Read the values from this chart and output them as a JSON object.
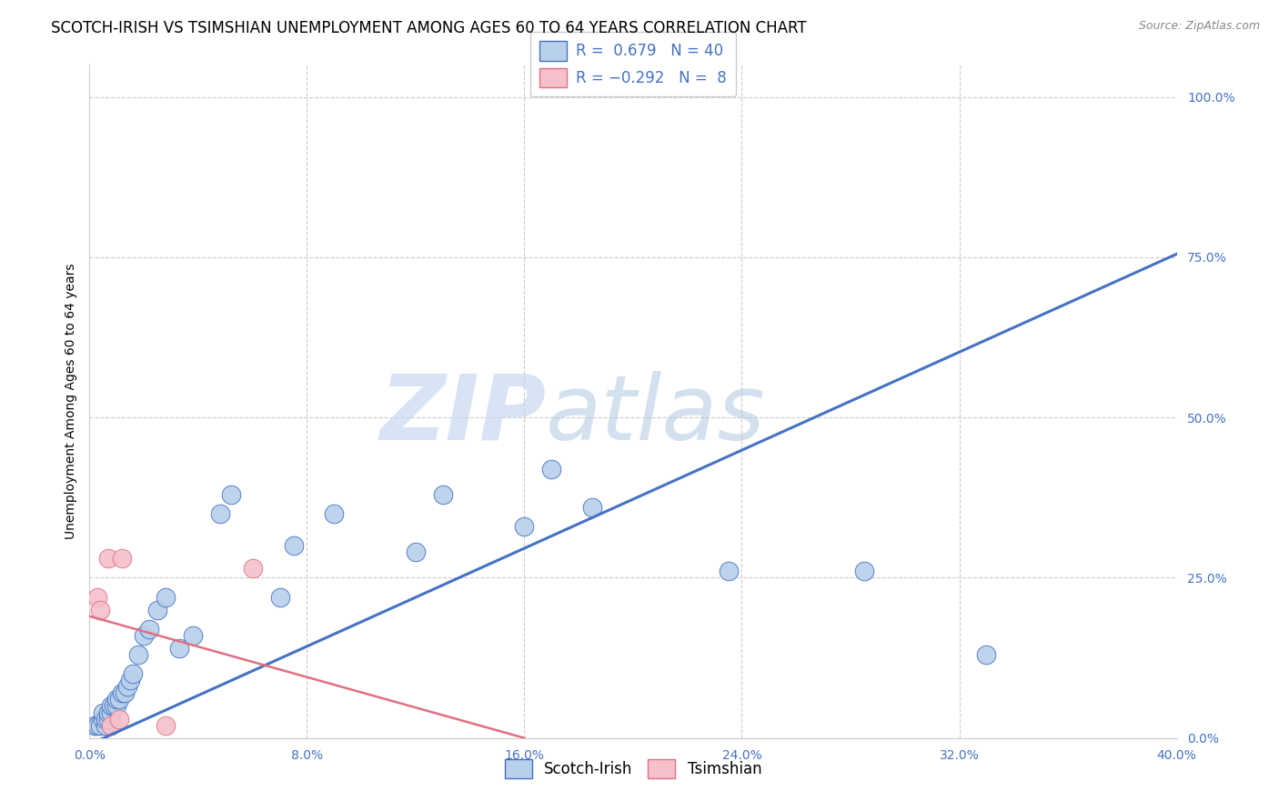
{
  "title": "SCOTCH-IRISH VS TSIMSHIAN UNEMPLOYMENT AMONG AGES 60 TO 64 YEARS CORRELATION CHART",
  "source": "Source: ZipAtlas.com",
  "ylabel": "Unemployment Among Ages 60 to 64 years",
  "xlim": [
    0.0,
    0.4
  ],
  "ylim": [
    0.0,
    1.05
  ],
  "xticks": [
    0.0,
    0.08,
    0.16,
    0.24,
    0.32,
    0.4
  ],
  "xtick_labels": [
    "0.0%",
    "8.0%",
    "16.0%",
    "24.0%",
    "32.0%",
    "40.0%"
  ],
  "yticks": [
    0.0,
    0.25,
    0.5,
    0.75,
    1.0
  ],
  "ytick_labels": [
    "0.0%",
    "25.0%",
    "50.0%",
    "75.0%",
    "100.0%"
  ],
  "scotch_irish_R": 0.679,
  "scotch_irish_N": 40,
  "tsimshian_R": -0.292,
  "tsimshian_N": 8,
  "scotch_irish_color": "#b8d0ea",
  "tsimshian_color": "#f5c0cb",
  "trend_blue": "#4472c4",
  "trend_pink": "#e07080",
  "scotch_irish_x": [
    0.002,
    0.003,
    0.004,
    0.005,
    0.005,
    0.006,
    0.006,
    0.007,
    0.007,
    0.008,
    0.008,
    0.009,
    0.01,
    0.01,
    0.011,
    0.012,
    0.013,
    0.014,
    0.015,
    0.016,
    0.018,
    0.02,
    0.022,
    0.025,
    0.028,
    0.033,
    0.038,
    0.048,
    0.052,
    0.07,
    0.075,
    0.09,
    0.12,
    0.13,
    0.16,
    0.17,
    0.185,
    0.235,
    0.285,
    0.33
  ],
  "scotch_irish_y": [
    0.02,
    0.02,
    0.02,
    0.03,
    0.04,
    0.02,
    0.03,
    0.03,
    0.04,
    0.04,
    0.05,
    0.05,
    0.05,
    0.06,
    0.06,
    0.07,
    0.07,
    0.08,
    0.09,
    0.1,
    0.13,
    0.16,
    0.17,
    0.2,
    0.22,
    0.14,
    0.16,
    0.35,
    0.38,
    0.22,
    0.3,
    0.35,
    0.29,
    0.38,
    0.33,
    0.42,
    0.36,
    0.26,
    0.26,
    0.13
  ],
  "blue_trend_x0": 0.0,
  "blue_trend_y0": -0.01,
  "blue_trend_x1": 0.4,
  "blue_trend_y1": 0.755,
  "pink_trend_x0": 0.0,
  "pink_trend_y0": 0.19,
  "pink_trend_x1": 0.16,
  "pink_trend_y1": 0.0,
  "tsimshian_x": [
    0.003,
    0.004,
    0.007,
    0.008,
    0.011,
    0.012,
    0.028,
    0.06
  ],
  "tsimshian_y": [
    0.22,
    0.2,
    0.28,
    0.02,
    0.03,
    0.28,
    0.02,
    0.265
  ],
  "watermark_zip": "ZIP",
  "watermark_atlas": "atlas",
  "background_color": "#ffffff",
  "grid_color": "#cccccc",
  "title_fontsize": 12,
  "axis_label_fontsize": 10,
  "tick_fontsize": 10,
  "legend_fontsize": 12,
  "source_fontsize": 9
}
